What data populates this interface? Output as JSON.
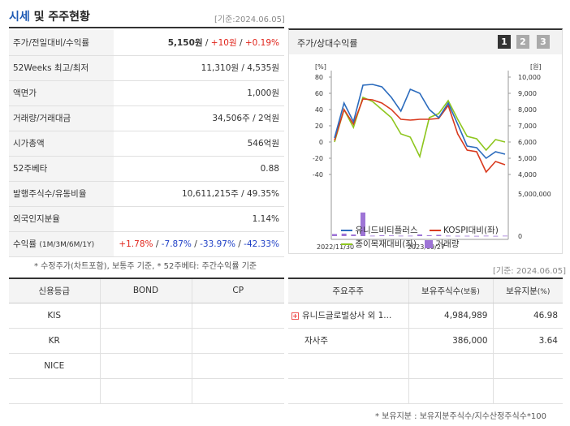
{
  "header": {
    "title_blue": "시세",
    "title_rest": " 및 주주현황",
    "date": "[기준:2024.06.05]"
  },
  "quote_rows": [
    {
      "key": "주가/전일대비/수익률",
      "v1": "5,150원",
      "sep1": " / ",
      "v2": "+10원",
      "sep2": " / ",
      "v3": "+0.19%"
    },
    {
      "key": "52Weeks 최고/최저",
      "value": "11,310원 / 4,535원"
    },
    {
      "key": "액면가",
      "value": "1,000원"
    },
    {
      "key": "거래량/거래대금",
      "value": "34,506주 / 2억원"
    },
    {
      "key": "시가총액",
      "value": "546억원"
    },
    {
      "key": "52주베타",
      "value": "0.88"
    },
    {
      "key": "발행주식수/유동비율",
      "value": "10,611,215주 / 49.35%"
    },
    {
      "key": "외국인지분율",
      "value": "1.14%"
    }
  ],
  "returns_row": {
    "key": "수익률",
    "sub": "(1M/3M/6M/1Y)",
    "r1": "+1.78%",
    "r2": "-7.87%",
    "r3": "-33.97%",
    "r4": "-42.33%",
    "sep": "/ "
  },
  "note1": "* 수정주가(차트포함), 보통주 기준, * 52주베타: 주간수익률 기준",
  "chart_panel": {
    "title": "주가/상대수익률",
    "pages": [
      "1",
      "2",
      "3"
    ]
  },
  "chart_data": {
    "type": "line",
    "left_axis_unit": "[%]",
    "right_axis_unit": "[원]",
    "left_ticks": [
      "80",
      "60",
      "40",
      "20",
      "0",
      "-20",
      "-40"
    ],
    "right_ticks": [
      "10,000",
      "9,000",
      "8,000",
      "7,000",
      "6,000",
      "5,000",
      "4,000"
    ],
    "volume_ticks": [
      "5,000,000",
      "0"
    ],
    "x_labels": [
      "2022/11/30",
      "2023/09/27"
    ],
    "ylim_left": [
      -40,
      80
    ],
    "series": [
      {
        "name": "유니드비티플러스",
        "color": "#2b6bbd",
        "values": [
          5,
          48,
          25,
          70,
          71,
          68,
          55,
          38,
          65,
          60,
          40,
          30,
          48,
          22,
          -5,
          -7,
          -20,
          -12,
          -15
        ]
      },
      {
        "name": "KOSPI대비(좌)",
        "color": "#d93a1f",
        "values": [
          2,
          40,
          22,
          53,
          52,
          48,
          40,
          28,
          27,
          28,
          28,
          29,
          45,
          10,
          -10,
          -12,
          -37,
          -24,
          -28
        ]
      },
      {
        "name": "종이목재대비(좌)",
        "color": "#8ec61e",
        "values": [
          0,
          40,
          18,
          55,
          50,
          40,
          30,
          10,
          6,
          -18,
          30,
          35,
          51,
          28,
          7,
          4,
          -10,
          3,
          0
        ]
      }
    ],
    "volume": {
      "name": "거래량",
      "color": "#9e74d6",
      "values": [
        0.25,
        0.3,
        0.2,
        2.8,
        0.05,
        0.1,
        0.08,
        0.05,
        0.05,
        0.2,
        0.1,
        0.15,
        0.05,
        0.04,
        0.04,
        0.03,
        0.05,
        0.03,
        0.05
      ],
      "ylim": [
        0,
        5
      ]
    }
  },
  "date2": "[기준: 2024.06.05]",
  "credit": {
    "headers": [
      "신용등급",
      "BOND",
      "CP"
    ],
    "rows": [
      [
        "KIS",
        "",
        ""
      ],
      [
        "KR",
        "",
        ""
      ],
      [
        "NICE",
        "",
        ""
      ],
      [
        "",
        "",
        ""
      ]
    ]
  },
  "holders": {
    "headers": [
      "주요주주",
      "보유주식수",
      "(보통)",
      "보유지분",
      "(%)"
    ],
    "rows": [
      {
        "name": "유니드글로벌상사 외 1...",
        "shares": "4,984,989",
        "pct": "46.98",
        "icon": "plus-icon"
      },
      {
        "name": "자사주",
        "shares": "386,000",
        "pct": "3.64"
      },
      {
        "name": "",
        "shares": "",
        "pct": ""
      },
      {
        "name": "",
        "shares": "",
        "pct": ""
      }
    ]
  },
  "note2": "* 보유지분 : 보유지분주식수/지수산정주식수*100"
}
